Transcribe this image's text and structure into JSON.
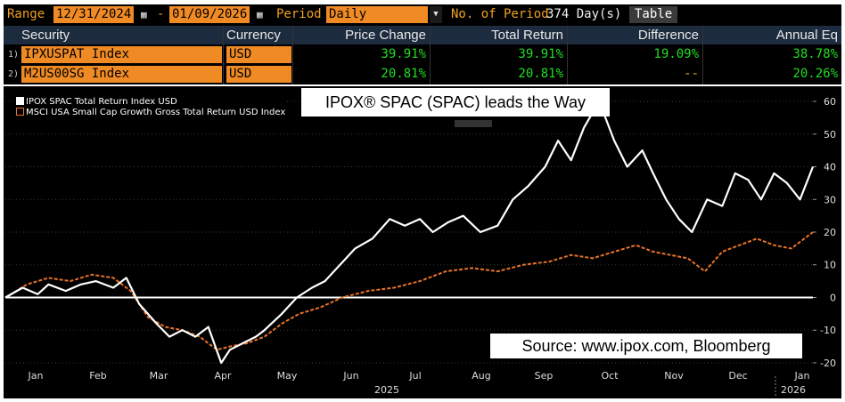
{
  "toolbar": {
    "range_label": "Range",
    "start_date": "12/31/2024",
    "dash": "-",
    "end_date": "01/09/2026",
    "period_label": "Period",
    "period_value": "Daily",
    "num_period_label": "No. of Period",
    "num_period_value": "374 Day(s)",
    "table_button": "Table",
    "calendar_icon": "calendar-icon",
    "dropdown_icon": "chevron-down-icon"
  },
  "table": {
    "headers": [
      "Security",
      "Currency",
      "Price Change",
      "Total Return",
      "Difference",
      "Annual Eq"
    ],
    "rows": [
      {
        "num": "1)",
        "security": "IPXUSPAT Index",
        "currency": "USD",
        "price_change": "39.91%",
        "total_return": "39.91%",
        "difference": "19.09%",
        "annual_eq": "38.78%"
      },
      {
        "num": "2)",
        "security": "M2US00SG Index",
        "currency": "USD",
        "price_change": "20.81%",
        "total_return": "20.81%",
        "difference": "--",
        "annual_eq": "20.26%"
      }
    ]
  },
  "headline": "IPOX® SPAC (SPAC) leads the Way",
  "source_note": "Source: www.ipox.com, Bloomberg",
  "colors": {
    "series1": "#ffffff",
    "series2": "#e8732a",
    "field": "#f08a24",
    "positive": "#22dd22",
    "header_bg": "#1c2c3e"
  },
  "chart_data": {
    "type": "line",
    "legend": [
      "IPOX SPAC Total Return Index USD",
      "MSCI USA Small Cap Growth Gross Total Return USD Index"
    ],
    "x_tick_labels": [
      "Jan",
      "Feb",
      "Mar",
      "Apr",
      "May",
      "Jun",
      "Jul",
      "Aug",
      "Sep",
      "Oct",
      "Nov",
      "Dec",
      "Jan"
    ],
    "year_labels": [
      "2025",
      "2026"
    ],
    "y_ticks": [
      60,
      50,
      40,
      30,
      20,
      10,
      0,
      -10,
      -20
    ],
    "ylim": [
      -23,
      63
    ],
    "xlim": [
      0,
      374
    ],
    "series": [
      {
        "name": "IPOX SPAC Total Return Index USD",
        "style": "solid",
        "x": [
          0,
          8,
          15,
          20,
          28,
          35,
          42,
          50,
          56,
          62,
          70,
          76,
          82,
          88,
          94,
          100,
          104,
          110,
          116,
          120,
          128,
          135,
          142,
          148,
          155,
          162,
          170,
          178,
          185,
          192,
          198,
          205,
          212,
          220,
          228,
          235,
          242,
          250,
          256,
          262,
          268,
          275,
          282,
          288,
          295,
          300,
          306,
          312,
          318,
          325,
          332,
          338,
          344,
          350,
          356,
          362,
          368,
          374
        ],
        "values": [
          0,
          3,
          1,
          4,
          2,
          4,
          5,
          3,
          6,
          -2,
          -8,
          -12,
          -10,
          -12,
          -9,
          -20,
          -16,
          -14,
          -12,
          -10,
          -5,
          0,
          3,
          5,
          10,
          15,
          18,
          24,
          22,
          24,
          20,
          23,
          25,
          20,
          22,
          30,
          34,
          40,
          48,
          42,
          52,
          60,
          48,
          40,
          45,
          38,
          30,
          24,
          20,
          30,
          28,
          38,
          36,
          30,
          38,
          35,
          30,
          40
        ]
      },
      {
        "name": "MSCI USA Small Cap Growth Gross Total Return USD Index",
        "style": "dashed",
        "x": [
          0,
          10,
          20,
          30,
          40,
          50,
          58,
          66,
          74,
          82,
          90,
          98,
          104,
          112,
          120,
          128,
          136,
          146,
          156,
          168,
          180,
          192,
          204,
          216,
          228,
          240,
          252,
          262,
          272,
          282,
          292,
          300,
          308,
          316,
          324,
          332,
          340,
          348,
          356,
          364,
          374
        ],
        "values": [
          0,
          4,
          6,
          5,
          7,
          6,
          2,
          -6,
          -9,
          -10,
          -12,
          -16,
          -15,
          -14,
          -12,
          -8,
          -5,
          -3,
          0,
          2,
          3,
          5,
          8,
          9,
          8,
          10,
          11,
          13,
          12,
          14,
          16,
          14,
          13,
          12,
          8,
          14,
          16,
          18,
          16,
          15,
          20
        ]
      }
    ]
  }
}
